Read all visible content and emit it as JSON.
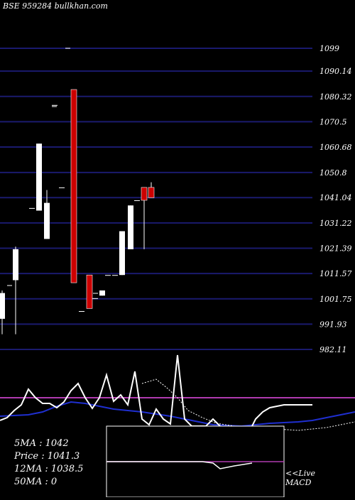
{
  "header": {
    "title": "BSE 959284  bullkhan.com"
  },
  "stats": {
    "ma5": "5MA : 1042",
    "price": "Price   : 1041.3",
    "ma12": "12MA : 1038.5",
    "ma50": "50MA : 0"
  },
  "footer": {
    "line1": "<<Live",
    "line2": "MACD"
  },
  "colors": {
    "background": "#000000",
    "grid": "#1a1a6e",
    "up_candle": "#ffffff",
    "down_candle": "#cc0000",
    "indicator_line": "#ffffff",
    "signal_line": "#1f2fd0",
    "level_line": "#b03ab0"
  },
  "chart_data": {
    "type": "candlestick",
    "y_ticks": [
      "1099",
      "1090.14",
      "1080.32",
      "1070.5",
      "1060.68",
      "1050.8",
      "1041.04",
      "1031.22",
      "1021.39",
      "1011.57",
      "1001.75",
      "991.93",
      "982.11"
    ],
    "ylim": [
      978,
      1102
    ],
    "candles": [
      {
        "o": 994,
        "h": 1005,
        "l": 988,
        "c": 1004,
        "color": "white"
      },
      {
        "o": 1009,
        "h": 1022,
        "l": 988,
        "c": 1021,
        "color": "white"
      },
      {
        "o": 1037,
        "h": 1037,
        "l": 1037,
        "c": 1037,
        "color": "white"
      },
      {
        "o": 1036,
        "h": 1062,
        "l": 1036,
        "c": 1062,
        "color": "white"
      },
      {
        "o": 1039,
        "h": 1044,
        "l": 1025,
        "c": 1025,
        "color": "white"
      },
      {
        "o": 1045,
        "h": 1045,
        "l": 1045,
        "c": 1045,
        "color": "white"
      },
      {
        "o": 1077,
        "h": 1077,
        "l": 1077,
        "c": 1077,
        "color": "white"
      },
      {
        "o": 1083,
        "h": 1083,
        "l": 1008,
        "c": 1008,
        "color": "red"
      },
      {
        "o": 997,
        "h": 997,
        "l": 997,
        "c": 997,
        "color": "white"
      },
      {
        "o": 1011,
        "h": 1011,
        "l": 998,
        "c": 998,
        "color": "red"
      },
      {
        "o": 1002,
        "h": 1002,
        "l": 1002,
        "c": 1002,
        "color": "white"
      },
      {
        "o": 1003,
        "h": 1005,
        "l": 1003,
        "c": 1005,
        "color": "white"
      },
      {
        "o": 1011,
        "h": 1011,
        "l": 1011,
        "c": 1011,
        "color": "white"
      },
      {
        "o": 1011,
        "h": 1011,
        "l": 1011,
        "c": 1011,
        "color": "white"
      },
      {
        "o": 1011,
        "h": 1028,
        "l": 1011,
        "c": 1028,
        "color": "white"
      },
      {
        "o": 1021,
        "h": 1038,
        "l": 1021,
        "c": 1038,
        "color": "white"
      },
      {
        "o": 1040,
        "h": 1040,
        "l": 1040,
        "c": 1040,
        "color": "white"
      },
      {
        "o": 1045,
        "h": 1045,
        "l": 1021,
        "c": 1040,
        "color": "red"
      },
      {
        "o": 1045,
        "h": 1047,
        "l": 1041,
        "c": 1041,
        "color": "red"
      }
    ],
    "x_index": [
      3,
      22,
      45,
      55,
      66,
      87,
      77,
      104,
      115,
      126,
      134,
      144,
      152,
      162,
      172,
      184,
      193,
      203,
      213
    ],
    "indicator": {
      "osc_line": [
        592,
        588,
        578,
        570,
        548,
        560,
        568,
        568,
        574,
        566,
        550,
        540,
        560,
        575,
        560,
        528,
        565,
        556,
        570,
        523,
        590,
        598,
        576,
        590,
        597,
        500,
        590,
        600,
        600,
        600,
        590,
        600,
        620,
        620,
        640,
        610,
        590,
        580,
        574,
        572,
        570,
        570
      ],
      "osc_x": [
        0,
        10,
        20,
        30,
        40,
        50,
        60,
        70,
        80,
        90,
        100,
        110,
        120,
        130,
        140,
        150,
        160,
        170,
        180,
        190,
        200,
        210,
        220,
        230,
        240,
        250,
        260,
        270,
        280,
        290,
        300,
        310,
        320,
        330,
        340,
        350,
        360,
        370,
        380,
        390,
        400,
        440
      ],
      "signal_line": [
        586,
        585,
        584,
        580,
        572,
        566,
        568,
        572,
        576,
        578,
        580,
        583,
        586,
        590,
        594,
        598,
        599,
        600,
        598,
        596,
        595,
        594,
        592,
        588,
        584,
        580
      ],
      "signal_x": [
        0,
        20,
        40,
        60,
        80,
        100,
        120,
        140,
        160,
        180,
        200,
        220,
        240,
        260,
        280,
        300,
        320,
        340,
        360,
        380,
        400,
        420,
        440,
        460,
        480,
        500
      ],
      "dotted_line": [
        540,
        534,
        546,
        560,
        578,
        588,
        596,
        600,
        602,
        604,
        606,
        604,
        602,
        598,
        594
      ],
      "dotted_x": [
        200,
        220,
        235,
        250,
        265,
        285,
        305,
        330,
        360,
        390,
        420,
        440,
        460,
        480,
        500
      ],
      "level": 560,
      "box_line": [
        650,
        650,
        650,
        650,
        652,
        660,
        656,
        652
      ],
      "box_x": [
        150,
        200,
        250,
        285,
        300,
        310,
        330,
        355
      ],
      "box_level": 650
    }
  }
}
